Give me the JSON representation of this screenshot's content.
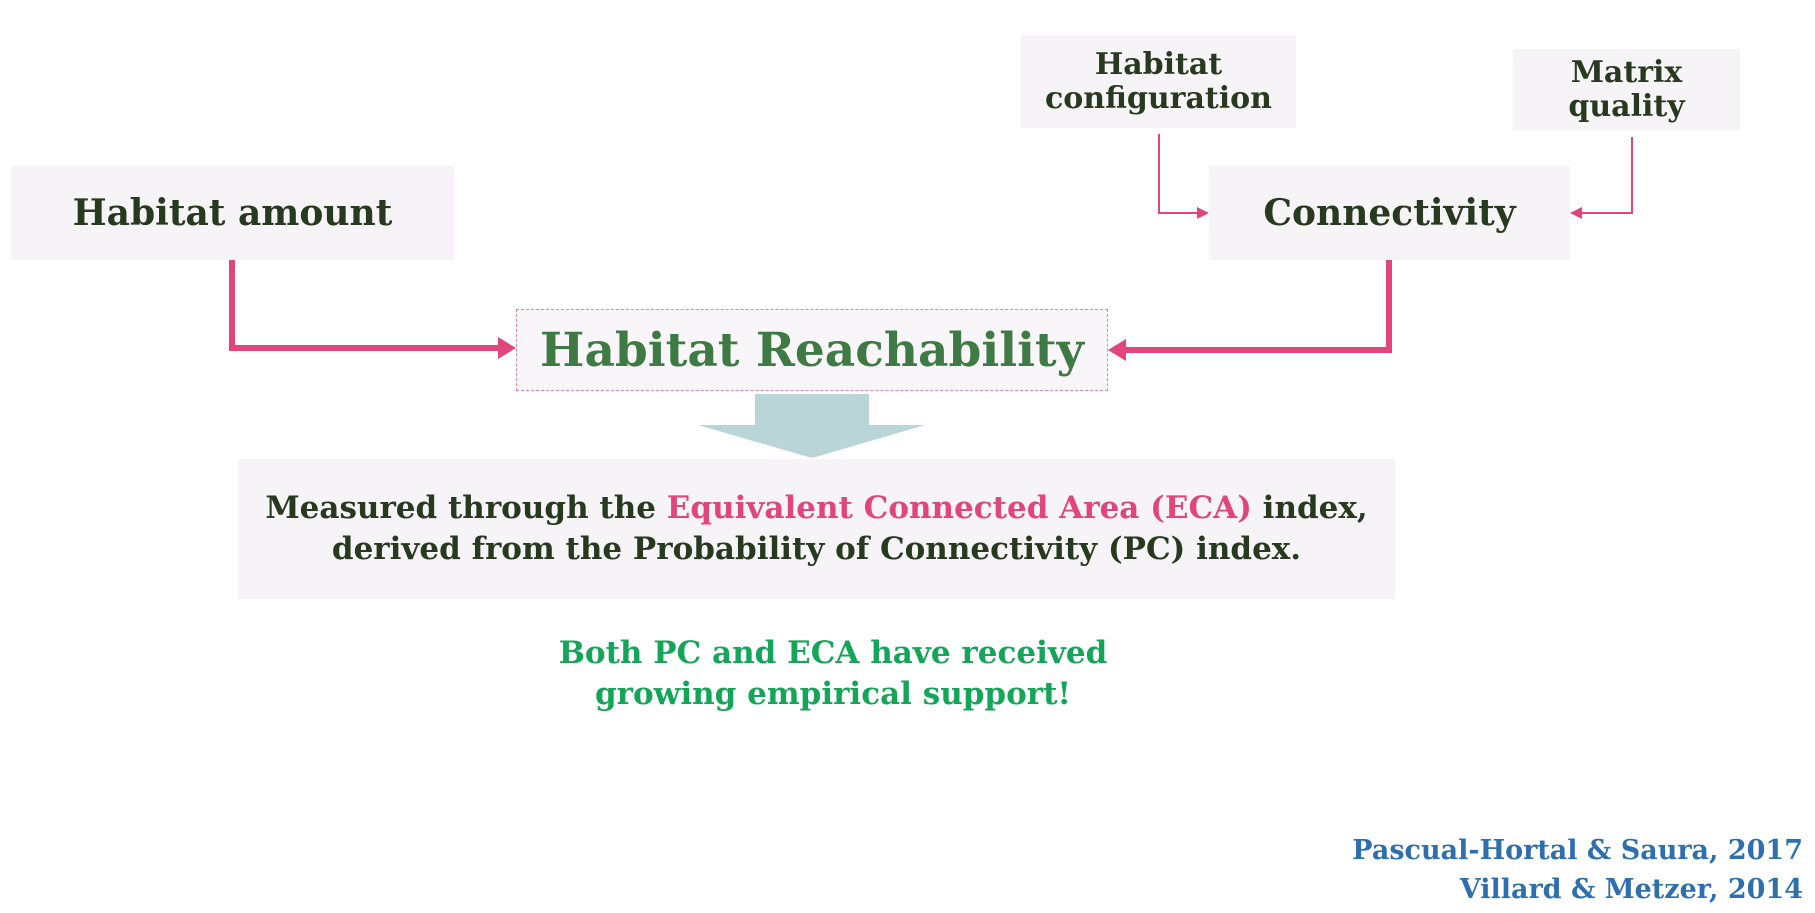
{
  "nodes": {
    "habitat_configuration": "Habitat configuration",
    "matrix_quality": "Matrix quality",
    "habitat_amount": "Habitat amount",
    "connectivity": "Connectivity",
    "habitat_reachability": "Habitat Reachability"
  },
  "measure": {
    "line1_prefix": "Measured through the ",
    "line1_highlight": "Equivalent Connected Area (ECA)",
    "line1_suffix": " index,",
    "line2": "derived from the Probability of Connectivity (PC) index."
  },
  "support": {
    "line1": "Both PC and ECA have received",
    "line2": "growing empirical support!"
  },
  "references": [
    "Pascual-Hortal & Saura, 2017",
    "Villard & Metzer, 2014"
  ],
  "colors": {
    "arrow_pink": "#e0467c",
    "down_arrow": "#b9d5d7",
    "box_bg": "#f6f4f6"
  }
}
